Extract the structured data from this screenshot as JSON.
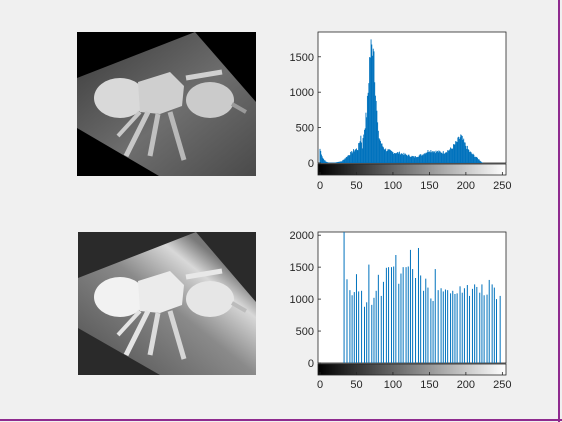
{
  "figure": {
    "background": "#f0f0f0",
    "frame_color": "#8e2a8e"
  },
  "images": [
    {
      "name": "origami-original",
      "icon": "grayscale-photo"
    },
    {
      "name": "origami-equalized",
      "icon": "grayscale-photo"
    }
  ],
  "chart_data": [
    {
      "type": "bar",
      "bar_color": "#0072bd",
      "xlim": [
        0,
        255
      ],
      "ylim": [
        0,
        1850
      ],
      "x_ticks": [
        "0",
        "50",
        "100",
        "150",
        "200",
        "250"
      ],
      "y_ticks": [
        "0",
        "500",
        "1000",
        "1500"
      ],
      "y_tick_values": [
        0,
        500,
        1000,
        1500
      ],
      "keypoints": [
        [
          0,
          200
        ],
        [
          4,
          70
        ],
        [
          8,
          20
        ],
        [
          12,
          5
        ],
        [
          20,
          5
        ],
        [
          30,
          25
        ],
        [
          40,
          120
        ],
        [
          48,
          190
        ],
        [
          52,
          200
        ],
        [
          56,
          380
        ],
        [
          58,
          230
        ],
        [
          60,
          420
        ],
        [
          62,
          560
        ],
        [
          64,
          700
        ],
        [
          66,
          1000
        ],
        [
          68,
          1450
        ],
        [
          70,
          1620
        ],
        [
          71,
          1600
        ],
        [
          72,
          1700
        ],
        [
          73,
          1760
        ],
        [
          74,
          1600
        ],
        [
          75,
          1300
        ],
        [
          76,
          1100
        ],
        [
          78,
          700
        ],
        [
          80,
          400
        ],
        [
          85,
          250
        ],
        [
          90,
          190
        ],
        [
          100,
          150
        ],
        [
          110,
          140
        ],
        [
          120,
          110
        ],
        [
          130,
          85
        ],
        [
          140,
          120
        ],
        [
          150,
          180
        ],
        [
          160,
          160
        ],
        [
          170,
          150
        ],
        [
          180,
          200
        ],
        [
          188,
          300
        ],
        [
          193,
          380
        ],
        [
          198,
          280
        ],
        [
          205,
          160
        ],
        [
          212,
          100
        ],
        [
          218,
          50
        ],
        [
          222,
          8
        ],
        [
          224,
          0
        ],
        [
          255,
          0
        ]
      ],
      "colorbar": "grayscale-0-255"
    },
    {
      "type": "bar",
      "bar_color": "#0072bd",
      "xlim": [
        0,
        255
      ],
      "ylim": [
        0,
        2050
      ],
      "x_ticks": [
        "0",
        "50",
        "100",
        "150",
        "200",
        "250"
      ],
      "y_ticks": [
        "0",
        "500",
        "1000",
        "1500",
        "2000"
      ],
      "y_tick_values": [
        0,
        500,
        1000,
        1500,
        2000
      ],
      "bars": [
        [
          33,
          2050
        ],
        [
          37,
          1310
        ],
        [
          41,
          1140
        ],
        [
          44,
          1060
        ],
        [
          47,
          1110
        ],
        [
          50,
          1390
        ],
        [
          53,
          1120
        ],
        [
          57,
          1130
        ],
        [
          61,
          880
        ],
        [
          64,
          950
        ],
        [
          67,
          1540
        ],
        [
          71,
          910
        ],
        [
          74,
          1020
        ],
        [
          77,
          1130
        ],
        [
          80,
          1380
        ],
        [
          84,
          1050
        ],
        [
          87,
          1270
        ],
        [
          91,
          1490
        ],
        [
          94,
          1500
        ],
        [
          98,
          1500
        ],
        [
          101,
          1510
        ],
        [
          104,
          1690
        ],
        [
          108,
          1240
        ],
        [
          111,
          1400
        ],
        [
          114,
          1500
        ],
        [
          118,
          1500
        ],
        [
          121,
          1510
        ],
        [
          124,
          1770
        ],
        [
          127,
          1470
        ],
        [
          131,
          1330
        ],
        [
          135,
          1800
        ],
        [
          138,
          1370
        ],
        [
          142,
          1130
        ],
        [
          145,
          1320
        ],
        [
          148,
          1180
        ],
        [
          152,
          1010
        ],
        [
          155,
          970
        ],
        [
          158,
          1470
        ],
        [
          162,
          1140
        ],
        [
          166,
          1170
        ],
        [
          169,
          1120
        ],
        [
          172,
          1150
        ],
        [
          175,
          1140
        ],
        [
          179,
          1090
        ],
        [
          182,
          1130
        ],
        [
          185,
          1080
        ],
        [
          188,
          1090
        ],
        [
          192,
          1200
        ],
        [
          195,
          1100
        ],
        [
          198,
          1170
        ],
        [
          202,
          1220
        ],
        [
          205,
          1050
        ],
        [
          209,
          1160
        ],
        [
          212,
          1230
        ],
        [
          215,
          1190
        ],
        [
          219,
          1100
        ],
        [
          222,
          1230
        ],
        [
          225,
          1060
        ],
        [
          229,
          1070
        ],
        [
          232,
          1300
        ],
        [
          236,
          1230
        ],
        [
          239,
          1180
        ],
        [
          242,
          1000
        ],
        [
          247,
          1050
        ]
      ],
      "colorbar": "grayscale-0-255"
    }
  ]
}
